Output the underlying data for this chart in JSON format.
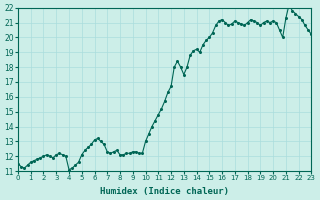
{
  "xlabel": "Humidex (Indice chaleur)",
  "ylabel": "",
  "background_color": "#cceee8",
  "grid_color": "#aadddd",
  "line_color": "#006655",
  "xlim": [
    0,
    23
  ],
  "ylim": [
    11,
    22
  ],
  "x_ticks": [
    0,
    1,
    2,
    3,
    4,
    5,
    6,
    7,
    8,
    9,
    10,
    11,
    12,
    13,
    14,
    15,
    16,
    17,
    18,
    19,
    20,
    21,
    22,
    23
  ],
  "y_ticks": [
    11,
    12,
    13,
    14,
    15,
    16,
    17,
    18,
    19,
    20,
    21,
    22
  ],
  "x_values": [
    0,
    0.25,
    0.5,
    0.75,
    1.0,
    1.25,
    1.5,
    1.75,
    2.0,
    2.25,
    2.5,
    2.75,
    3.0,
    3.25,
    3.5,
    3.75,
    4.0,
    4.25,
    4.5,
    4.75,
    5.0,
    5.25,
    5.5,
    5.75,
    6.0,
    6.25,
    6.5,
    6.75,
    7.0,
    7.25,
    7.5,
    7.75,
    8.0,
    8.25,
    8.5,
    8.75,
    9.0,
    9.25,
    9.5,
    9.75,
    10.0,
    10.25,
    10.5,
    10.75,
    11.0,
    11.25,
    11.5,
    11.75,
    12.0,
    12.25,
    12.5,
    12.75,
    13.0,
    13.25,
    13.5,
    13.75,
    14.0,
    14.25,
    14.5,
    14.75,
    15.0,
    15.25,
    15.5,
    15.75,
    16.0,
    16.25,
    16.5,
    16.75,
    17.0,
    17.25,
    17.5,
    17.75,
    18.0,
    18.25,
    18.5,
    18.75,
    19.0,
    19.25,
    19.5,
    19.75,
    20.0,
    20.25,
    20.5,
    20.75,
    21.0,
    21.25,
    21.5,
    21.75,
    22.0,
    22.25,
    22.5,
    22.75,
    23.0
  ],
  "y_values": [
    11.5,
    11.3,
    11.2,
    11.4,
    11.6,
    11.7,
    11.8,
    11.9,
    12.0,
    12.1,
    12.0,
    11.9,
    12.1,
    12.2,
    12.1,
    12.0,
    11.1,
    11.2,
    11.4,
    11.6,
    12.1,
    12.4,
    12.6,
    12.8,
    13.1,
    13.2,
    13.0,
    12.8,
    12.3,
    12.2,
    12.3,
    12.4,
    12.1,
    12.1,
    12.2,
    12.2,
    12.3,
    12.3,
    12.2,
    12.2,
    13.0,
    13.5,
    14.0,
    14.4,
    14.8,
    15.2,
    15.7,
    16.3,
    16.7,
    18.0,
    18.4,
    18.0,
    17.5,
    18.0,
    18.8,
    19.1,
    19.2,
    19.0,
    19.5,
    19.8,
    20.0,
    20.3,
    20.8,
    21.1,
    21.2,
    21.0,
    20.8,
    20.9,
    21.1,
    21.0,
    20.9,
    20.8,
    21.0,
    21.2,
    21.1,
    21.0,
    20.8,
    21.0,
    21.1,
    21.0,
    21.1,
    21.0,
    20.5,
    20.0,
    21.3,
    22.2,
    21.8,
    21.6,
    21.4,
    21.2,
    20.8,
    20.5,
    20.2
  ]
}
